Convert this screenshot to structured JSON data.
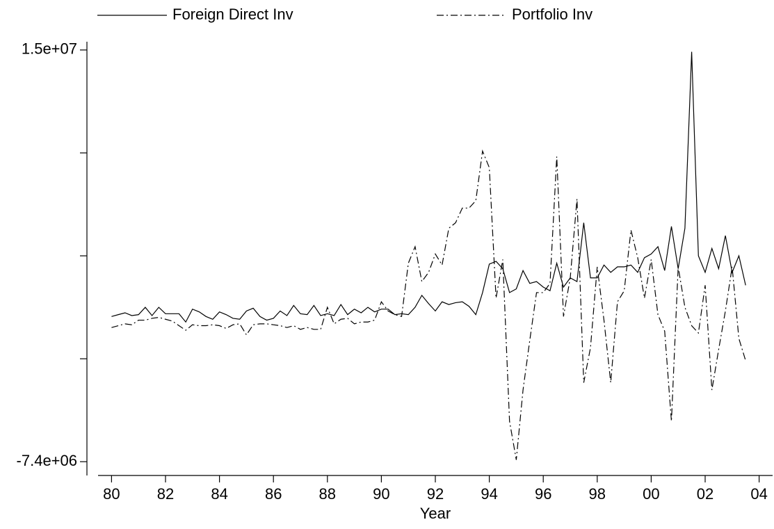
{
  "chart_data": {
    "type": "line",
    "xlabel": "Year",
    "x": [
      1980,
      1980.25,
      1980.5,
      1980.75,
      1981,
      1981.25,
      1981.5,
      1981.75,
      1982,
      1982.25,
      1982.5,
      1982.75,
      1983,
      1983.25,
      1983.5,
      1983.75,
      1984,
      1984.25,
      1984.5,
      1984.75,
      1985,
      1985.25,
      1985.5,
      1985.75,
      1986,
      1986.25,
      1986.5,
      1986.75,
      1987,
      1987.25,
      1987.5,
      1987.75,
      1988,
      1988.25,
      1988.5,
      1988.75,
      1989,
      1989.25,
      1989.5,
      1989.75,
      1990,
      1990.25,
      1990.5,
      1990.75,
      1991,
      1991.25,
      1991.5,
      1991.75,
      1992,
      1992.25,
      1992.5,
      1992.75,
      1993,
      1993.25,
      1993.5,
      1993.75,
      1994,
      1994.25,
      1994.5,
      1994.75,
      1995,
      1995.25,
      1995.5,
      1995.75,
      1996,
      1996.25,
      1996.5,
      1996.75,
      1997,
      1997.25,
      1997.5,
      1997.75,
      1998,
      1998.25,
      1998.5,
      1998.75,
      1999,
      1999.25,
      1999.5,
      1999.75,
      2000,
      2000.25,
      2000.5,
      2000.75,
      2001,
      2001.25,
      2001.5,
      2001.75,
      2002,
      2002.25,
      2002.5,
      2002.75,
      2003,
      2003.25,
      2003.5
    ],
    "series": [
      {
        "name": "Foreign Direct Inv",
        "color": "#000000",
        "line_style": "solid",
        "values": [
          500000,
          600000,
          700000,
          550000,
          600000,
          1000000,
          550000,
          1000000,
          650000,
          650000,
          650000,
          200000,
          900000,
          750000,
          500000,
          350000,
          750000,
          600000,
          400000,
          350000,
          800000,
          950000,
          500000,
          300000,
          400000,
          800000,
          550000,
          1100000,
          650000,
          600000,
          1100000,
          550000,
          650000,
          550000,
          1150000,
          600000,
          900000,
          700000,
          1000000,
          750000,
          900000,
          900000,
          600000,
          650000,
          600000,
          1000000,
          1650000,
          1200000,
          800000,
          1300000,
          1150000,
          1250000,
          1300000,
          1050000,
          600000,
          1800000,
          3350000,
          3500000,
          3100000,
          1800000,
          2000000,
          3000000,
          2300000,
          2400000,
          2100000,
          1900000,
          3400000,
          2100000,
          2600000,
          2400000,
          5600000,
          2600000,
          2600000,
          3300000,
          2900000,
          3200000,
          3200000,
          3300000,
          2900000,
          3700000,
          3900000,
          4300000,
          3000000,
          5400000,
          3100000,
          5300000,
          14900000,
          3800000,
          2900000,
          4200000,
          3100000,
          4900000,
          2900000,
          3800000,
          2200000
        ]
      },
      {
        "name": "Portfolio Inv",
        "color": "#000000",
        "line_style": "dashdot",
        "values": [
          -100000,
          0,
          100000,
          50000,
          300000,
          300000,
          400000,
          450000,
          350000,
          250000,
          0,
          -250000,
          50000,
          0,
          0,
          50000,
          0,
          -150000,
          50000,
          100000,
          -500000,
          50000,
          100000,
          100000,
          50000,
          0,
          -100000,
          0,
          -200000,
          -100000,
          -200000,
          -200000,
          1000000,
          100000,
          350000,
          400000,
          100000,
          200000,
          200000,
          300000,
          1300000,
          800000,
          600000,
          500000,
          3400000,
          4300000,
          2400000,
          2900000,
          3900000,
          3300000,
          5300000,
          5600000,
          6400000,
          6400000,
          6800000,
          9500000,
          8600000,
          1500000,
          3600000,
          -5200000,
          -7300000,
          -3500000,
          -800000,
          1800000,
          1800000,
          2300000,
          9200000,
          500000,
          2600000,
          6900000,
          -3100000,
          -1200000,
          3200000,
          300000,
          -3100000,
          1300000,
          1900000,
          5200000,
          3700000,
          1500000,
          3600000,
          600000,
          -300000,
          -5200000,
          3200000,
          1000000,
          0,
          -400000,
          2200000,
          -3500000,
          -1300000,
          800000,
          3200000,
          -700000,
          -1900000
        ]
      }
    ],
    "xlim": [
      1979.5,
      2004.5
    ],
    "xticks": [
      {
        "value": 1980,
        "label": "80"
      },
      {
        "value": 1982,
        "label": "82"
      },
      {
        "value": 1984,
        "label": "84"
      },
      {
        "value": 1986,
        "label": "86"
      },
      {
        "value": 1988,
        "label": "88"
      },
      {
        "value": 1990,
        "label": "90"
      },
      {
        "value": 1992,
        "label": "92"
      },
      {
        "value": 1994,
        "label": "94"
      },
      {
        "value": 1996,
        "label": "96"
      },
      {
        "value": 1998,
        "label": "98"
      },
      {
        "value": 2000,
        "label": "00"
      },
      {
        "value": 2002,
        "label": "02"
      },
      {
        "value": 2004,
        "label": "04"
      }
    ],
    "ylim": [
      -8150000,
      15450000
    ],
    "yticks": [
      {
        "value": -7400000,
        "label": "-7.4e+06"
      },
      {
        "value": 15000000,
        "label": "1.5e+07"
      }
    ],
    "yminor_ticks": [
      -1800000,
      3800000,
      9400000
    ],
    "legend": "top"
  }
}
